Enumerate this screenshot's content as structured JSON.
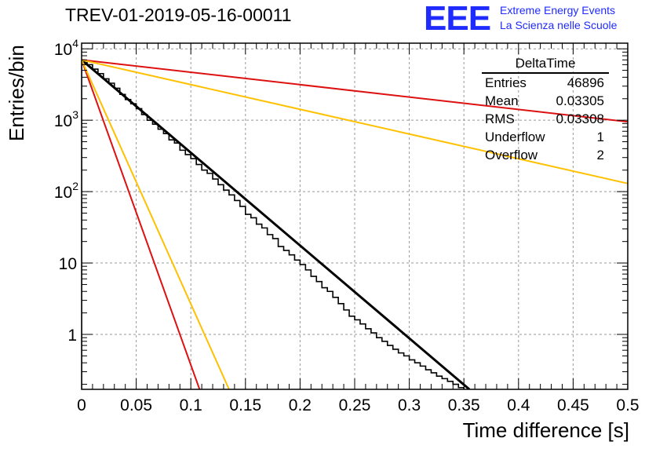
{
  "chart_data": {
    "type": "histogram",
    "title": "TREV-01-2019-05-16-00011",
    "xlabel": "Time difference [s]",
    "ylabel": "Entries/bin",
    "xlim": [
      0,
      0.5
    ],
    "ylim": [
      0.17,
      12000
    ],
    "y_scale": "log",
    "grid": true,
    "x_ticks": [
      "0",
      "0.05",
      "0.1",
      "0.15",
      "0.2",
      "0.25",
      "0.3",
      "0.35",
      "0.4",
      "0.45",
      "0.5"
    ],
    "y_ticks": [
      {
        "value": 1,
        "label": "1"
      },
      {
        "value": 10,
        "label": "10"
      },
      {
        "value": 100,
        "label": "10",
        "exp": "2"
      },
      {
        "value": 1000,
        "label": "10",
        "exp": "3"
      },
      {
        "value": 10000,
        "label": "10",
        "exp": "4"
      }
    ],
    "histogram": {
      "bin_width": 0.005,
      "counts": [
        6800,
        6000,
        5200,
        4500,
        3800,
        3300,
        2800,
        2300,
        1950,
        1700,
        1450,
        1200,
        1000,
        880,
        750,
        650,
        530,
        480,
        380,
        330,
        290,
        240,
        200,
        180,
        150,
        125,
        105,
        90,
        75,
        62,
        48,
        43,
        35,
        31,
        25,
        22,
        17,
        15,
        13,
        11,
        9.5,
        8,
        6.5,
        5.5,
        4.5,
        4,
        3.3,
        2.7,
        2.2,
        1.8,
        1.6,
        1.4,
        1.2,
        1.05,
        0.9,
        0.8,
        0.7,
        0.62,
        0.55,
        0.5,
        0.44,
        0.4,
        0.36,
        0.32,
        0.29,
        0.26,
        0.24,
        0.22,
        0.2,
        0.18
      ]
    },
    "fits": [
      {
        "color": "#000000",
        "width": 3,
        "x": [
          0,
          0.355
        ],
        "y": [
          7000,
          0.17
        ]
      },
      {
        "color": "#dd1111",
        "width": 2,
        "x": [
          0,
          0.5
        ],
        "y": [
          7000,
          950
        ]
      },
      {
        "color": "#ffc000",
        "width": 2,
        "x": [
          0,
          0.5
        ],
        "y": [
          7000,
          130
        ]
      },
      {
        "color": "#dd1111",
        "width": 2,
        "x": [
          0,
          0.108
        ],
        "y": [
          7000,
          0.17
        ]
      },
      {
        "color": "#ffc000",
        "width": 2,
        "x": [
          0,
          0.135
        ],
        "y": [
          7000,
          0.17
        ]
      }
    ],
    "stats_box": {
      "title": "DeltaTime",
      "rows": [
        {
          "label": "Entries",
          "value": "46896"
        },
        {
          "label": "Mean",
          "value": "0.03305"
        },
        {
          "label": "RMS",
          "value": "0.03308"
        },
        {
          "label": "Underflow",
          "value": "1"
        },
        {
          "label": "Overflow",
          "value": "2"
        }
      ]
    }
  },
  "logo": {
    "mark": "EEE",
    "line1": "Extreme Energy Events",
    "line2": "La Scienza nelle Scuole",
    "color": "#1f2bff"
  }
}
